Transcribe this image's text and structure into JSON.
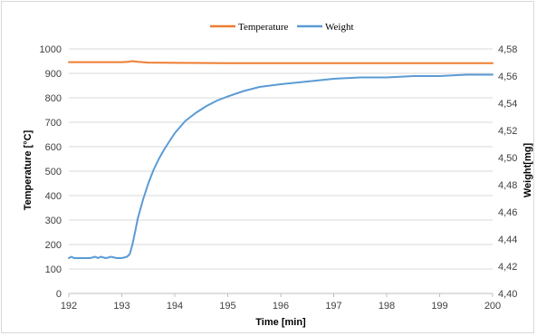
{
  "chart_data": {
    "type": "line",
    "xlabel": "Time  [min]",
    "ylabel": "Temperature [°C]",
    "y2label": "Weight[mg]",
    "xlim": [
      192,
      200
    ],
    "ylim": [
      0,
      1000
    ],
    "y2lim": [
      4.4,
      4.58
    ],
    "x_ticks": [
      "192",
      "193",
      "194",
      "195",
      "196",
      "197",
      "198",
      "199",
      "200"
    ],
    "y_ticks": [
      "0",
      "100",
      "200",
      "300",
      "400",
      "500",
      "600",
      "700",
      "800",
      "900",
      "1000"
    ],
    "y2_ticks": [
      "4,40",
      "4,42",
      "4,44",
      "4,46",
      "4,48",
      "4,50",
      "4,52",
      "4,54",
      "4,56",
      "4,58"
    ],
    "grid": "horizontal",
    "legend_position": "top",
    "series": [
      {
        "name": "Temperature",
        "axis": "left",
        "color": "#ED7D31",
        "x": [
          192.0,
          192.5,
          193.0,
          193.12,
          193.2,
          193.3,
          193.5,
          194.0,
          195.0,
          196.0,
          197.0,
          198.0,
          199.0,
          200.0
        ],
        "y": [
          946,
          946,
          946,
          947,
          950,
          947,
          944,
          943,
          942,
          942,
          942,
          942,
          942,
          942
        ]
      },
      {
        "name": "Weight",
        "axis": "right",
        "color": "#5B9BD5",
        "x": [
          192.0,
          192.05,
          192.1,
          192.2,
          192.4,
          192.5,
          192.55,
          192.6,
          192.7,
          192.8,
          192.9,
          193.0,
          193.1,
          193.15,
          193.2,
          193.25,
          193.3,
          193.4,
          193.5,
          193.6,
          193.7,
          193.8,
          194.0,
          194.2,
          194.4,
          194.6,
          194.8,
          195.0,
          195.3,
          195.6,
          196.0,
          196.5,
          197.0,
          197.5,
          198.0,
          198.5,
          199.0,
          199.5,
          200.0
        ],
        "y": [
          4.426,
          4.427,
          4.426,
          4.426,
          4.426,
          4.427,
          4.426,
          4.427,
          4.426,
          4.427,
          4.426,
          4.426,
          4.427,
          4.429,
          4.436,
          4.445,
          4.455,
          4.469,
          4.481,
          4.491,
          4.499,
          4.506,
          4.518,
          4.527,
          4.533,
          4.538,
          4.542,
          4.545,
          4.549,
          4.552,
          4.554,
          4.556,
          4.558,
          4.559,
          4.559,
          4.56,
          4.56,
          4.561,
          4.561
        ]
      }
    ]
  }
}
